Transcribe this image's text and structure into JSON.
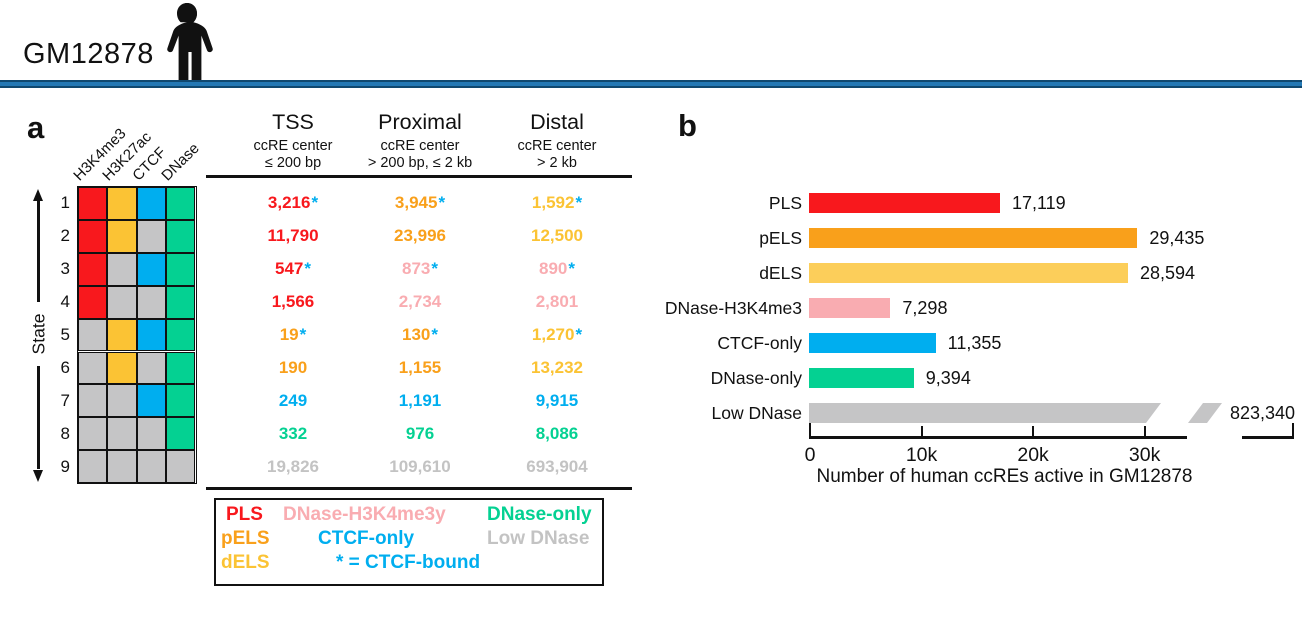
{
  "colors": {
    "red": "#F8181D",
    "orange": "#F9A01B",
    "gold": "#FBC334",
    "yellow": "#FCCE5A",
    "pink": "#F9ACB1",
    "blue": "#00AEEF",
    "green": "#04D192",
    "gray": "#C5C5C6",
    "gray_text": "#C3C3C3",
    "ink": "#111111",
    "divider": "#2478B4"
  },
  "header": {
    "title": "GM12878",
    "icon": "human-silhouette"
  },
  "panel_a": {
    "label": "a",
    "legend": {
      "entries": [
        {
          "label": "PLS",
          "color": "red"
        },
        {
          "label": "pELS",
          "color": "orange"
        },
        {
          "label": "dELS",
          "color": "gold"
        },
        {
          "label": "DNase-H3K4me3y",
          "color": "pink"
        },
        {
          "label": "CTCF-only",
          "color": "blue"
        },
        {
          "label": "* = CTCF-bound",
          "color": "blue"
        },
        {
          "label": "DNase-only",
          "color": "green"
        },
        {
          "label": "Low DNase",
          "color": "gray_text"
        }
      ]
    }
  },
  "panel_b": {
    "label": "b"
  },
  "chart_data": [
    {
      "id": "state-mark-heatmap",
      "type": "heatmap",
      "ylabel": "State",
      "categories_y": [
        "1",
        "2",
        "3",
        "4",
        "5",
        "6",
        "7",
        "8",
        "9"
      ],
      "categories_x": [
        "H3K4me3",
        "H3K27ac",
        "CTCF",
        "DNase"
      ],
      "cell_colors": [
        [
          "red",
          "gold",
          "blue",
          "green"
        ],
        [
          "red",
          "gold",
          "gray",
          "green"
        ],
        [
          "red",
          "gray",
          "blue",
          "green"
        ],
        [
          "red",
          "gray",
          "gray",
          "green"
        ],
        [
          "gray",
          "gold",
          "blue",
          "green"
        ],
        [
          "gray",
          "gold",
          "gray",
          "green"
        ],
        [
          "gray",
          "gray",
          "blue",
          "green"
        ],
        [
          "gray",
          "gray",
          "gray",
          "green"
        ],
        [
          "gray",
          "gray",
          "gray",
          "gray"
        ]
      ]
    },
    {
      "id": "state-counts-table",
      "type": "table",
      "column_groups": [
        {
          "title": "TSS",
          "sub1": "ccRE center",
          "sub2": "≤ 200 bp"
        },
        {
          "title": "Proximal",
          "sub1": "ccRE center",
          "sub2": "> 200 bp, ≤ 2 kb"
        },
        {
          "title": "Distal",
          "sub1": "ccRE center",
          "sub2": "> 2 kb"
        }
      ],
      "rows": [
        {
          "state": "1",
          "cells": [
            {
              "value": "3,216",
              "star": true,
              "color": "red"
            },
            {
              "value": "3,945",
              "star": true,
              "color": "orange"
            },
            {
              "value": "1,592",
              "star": true,
              "color": "gold"
            }
          ]
        },
        {
          "state": "2",
          "cells": [
            {
              "value": "11,790",
              "star": false,
              "color": "red"
            },
            {
              "value": "23,996",
              "star": false,
              "color": "orange"
            },
            {
              "value": "12,500",
              "star": false,
              "color": "gold"
            }
          ]
        },
        {
          "state": "3",
          "cells": [
            {
              "value": "547",
              "star": true,
              "color": "red"
            },
            {
              "value": "873",
              "star": true,
              "color": "pink"
            },
            {
              "value": "890",
              "star": true,
              "color": "pink"
            }
          ]
        },
        {
          "state": "4",
          "cells": [
            {
              "value": "1,566",
              "star": false,
              "color": "red"
            },
            {
              "value": "2,734",
              "star": false,
              "color": "pink"
            },
            {
              "value": "2,801",
              "star": false,
              "color": "pink"
            }
          ]
        },
        {
          "state": "5",
          "cells": [
            {
              "value": "19",
              "star": true,
              "color": "orange"
            },
            {
              "value": "130",
              "star": true,
              "color": "orange"
            },
            {
              "value": "1,270",
              "star": true,
              "color": "gold"
            }
          ]
        },
        {
          "state": "6",
          "cells": [
            {
              "value": "190",
              "star": false,
              "color": "orange"
            },
            {
              "value": "1,155",
              "star": false,
              "color": "orange"
            },
            {
              "value": "13,232",
              "star": false,
              "color": "gold"
            }
          ]
        },
        {
          "state": "7",
          "cells": [
            {
              "value": "249",
              "star": false,
              "color": "blue"
            },
            {
              "value": "1,191",
              "star": false,
              "color": "blue"
            },
            {
              "value": "9,915",
              "star": false,
              "color": "blue"
            }
          ]
        },
        {
          "state": "8",
          "cells": [
            {
              "value": "332",
              "star": false,
              "color": "green"
            },
            {
              "value": "976",
              "star": false,
              "color": "green"
            },
            {
              "value": "8,086",
              "star": false,
              "color": "green"
            }
          ]
        },
        {
          "state": "9",
          "cells": [
            {
              "value": "19,826",
              "star": false,
              "color": "gray_text"
            },
            {
              "value": "109,610",
              "star": false,
              "color": "gray_text"
            },
            {
              "value": "693,904",
              "star": false,
              "color": "gray_text"
            }
          ]
        }
      ],
      "star_meaning": "* = CTCF-bound",
      "star_color": "blue"
    },
    {
      "id": "ccre-counts-bar",
      "type": "bar",
      "orientation": "horizontal",
      "categories": [
        "PLS",
        "pELS",
        "dELS",
        "DNase-H3K4me3",
        "CTCF-only",
        "DNase-only",
        "Low DNase"
      ],
      "values": [
        17119,
        29435,
        28594,
        7298,
        11355,
        9394,
        823340
      ],
      "value_labels": [
        "17,119",
        "29,435",
        "28,594",
        "7,298",
        "11,355",
        "9,394",
        "823,340"
      ],
      "bar_colors": [
        "red",
        "orange",
        "yellow",
        "pink",
        "blue",
        "green",
        "gray"
      ],
      "x_ticks": [
        {
          "value": 0,
          "label": "0"
        },
        {
          "value": 10000,
          "label": "10k"
        },
        {
          "value": 20000,
          "label": "20k"
        },
        {
          "value": 30000,
          "label": "30k"
        }
      ],
      "xlim": [
        0,
        34000
      ],
      "xlabel": "Number of human ccREs active in GM12878",
      "grid": false,
      "legend_position": "none",
      "axis_break": true,
      "broken_category": "Low DNase"
    }
  ]
}
